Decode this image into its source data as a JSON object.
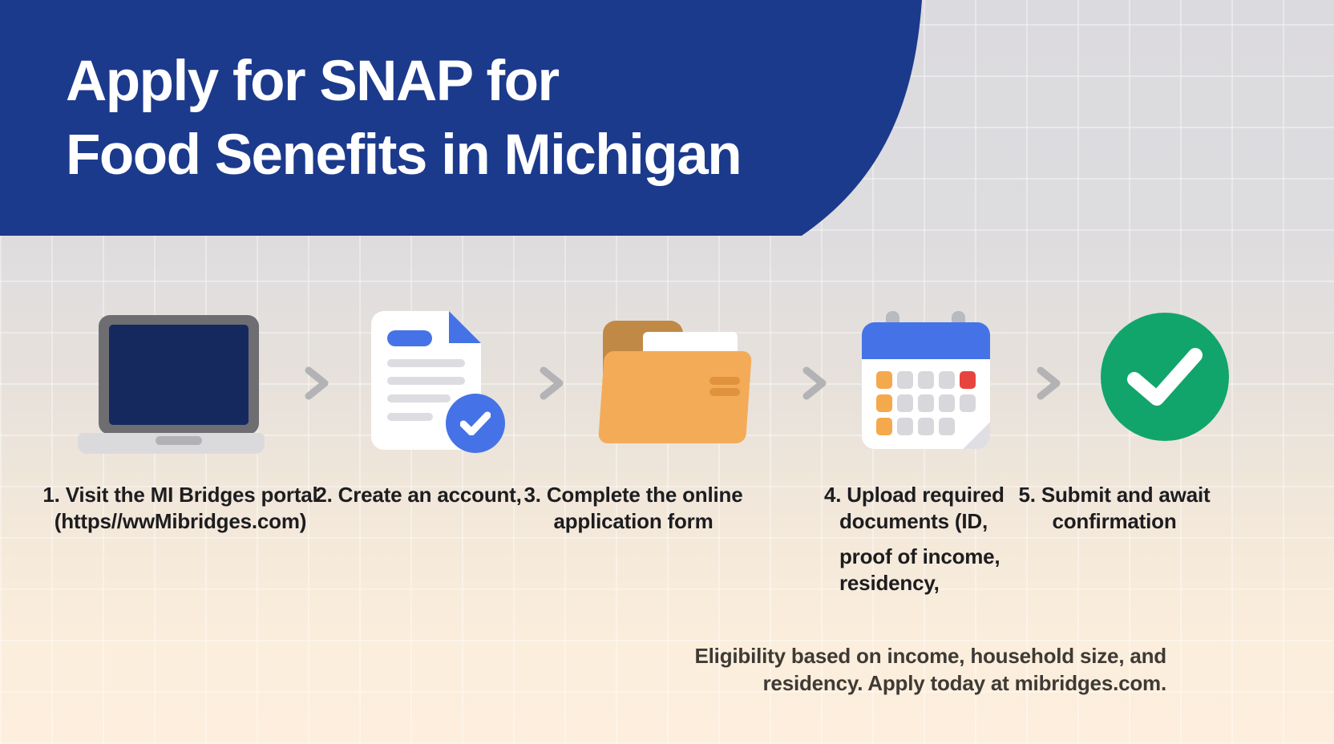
{
  "banner": {
    "title_line1": "Apply for SNAP for",
    "title_line2": "Food Senefits in Michigan"
  },
  "steps": [
    {
      "icon": "laptop-icon",
      "lines": [
        "1. Visit the MI Bridges portal",
        "(https//wwMibridges.com)"
      ]
    },
    {
      "icon": "document-check-icon",
      "lines": [
        "2. Create an account,"
      ]
    },
    {
      "icon": "folder-icon",
      "lines": [
        "3. Complete the online",
        "application form"
      ]
    },
    {
      "icon": "calendar-icon",
      "lines": [
        "4. Upload required",
        "documents (ID,"
      ],
      "extra_lines": [
        "proof of income,",
        "residency,"
      ]
    },
    {
      "icon": "check-circle-icon",
      "lines": [
        "5. Submit and await",
        "confirmation"
      ]
    }
  ],
  "footer": {
    "line1": "Eligibility based on income, household size, and",
    "line2": "residency. Apply today at mibridges.com."
  },
  "icons": {
    "arrow_between_steps": "chevron-right-icon",
    "calendar_cells": [
      "o",
      "g",
      "g",
      "g",
      "r",
      "o",
      "g",
      "g",
      "g",
      "g",
      "o",
      "g",
      "g",
      "g",
      "x"
    ]
  },
  "colors": {
    "banner_blue": "#1c3a8c",
    "accent_blue": "#4573e7",
    "laptop_screen_navy": "#16295f",
    "folder_front": "#f4ab58",
    "folder_back": "#c08a46",
    "calendar_orange": "#f5a94d",
    "calendar_red": "#e8443e",
    "green": "#12a56b",
    "arrow_gray": "#b3b3b5"
  }
}
